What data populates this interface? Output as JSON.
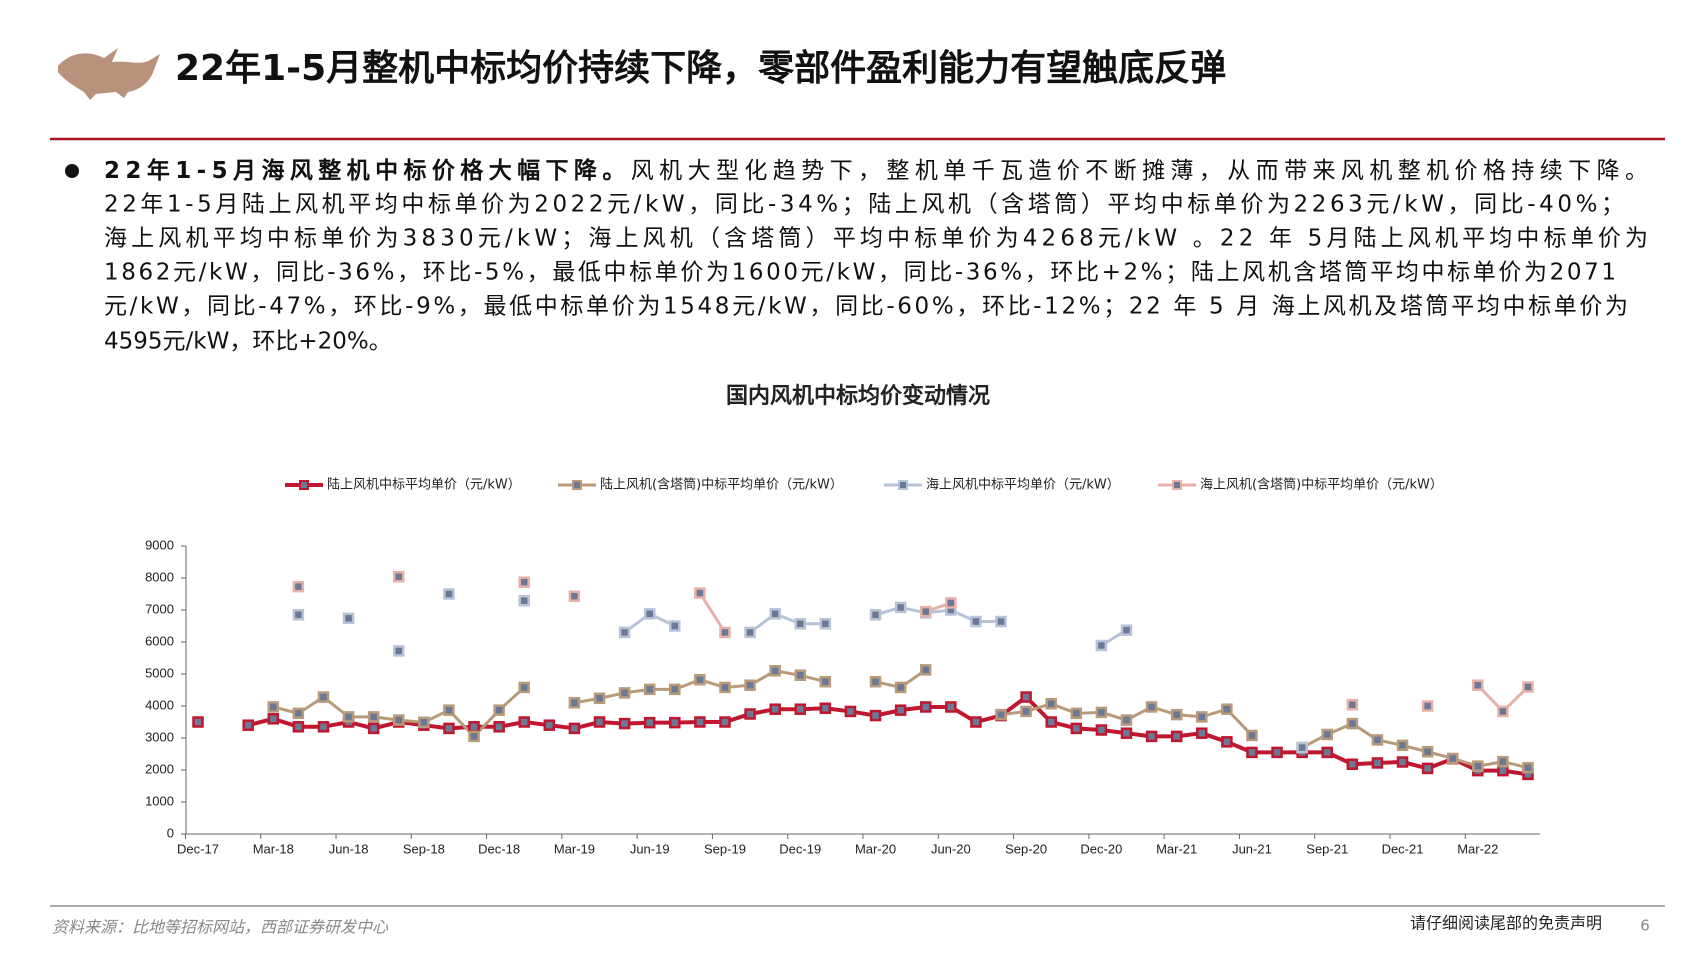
{
  "header": {
    "title": "22年1-5月整机中标均价持续下降，零部件盈利能力有望触底反弹"
  },
  "bullet": {
    "lead": "22年1-5月海风整机中标价格大幅下降。",
    "lines": [
      "风机大型化趋势下，整机单千瓦造价不断摊薄，从而带来风机整机价格持续下降。",
      "22年1-5月陆上风机平均中标单价为2022元/kW，同比-34%；陆上风机（含塔筒）平均中标单价为2263元/kW，同比-40%；",
      "海上风机平均中标单价为3830元/kW；海上风机（含塔筒）平均中标单价为4268元/kW 。22 年 5月陆上风机平均中标单价为",
      "1862元/kW，同比-36%，环比-5%，最低中标单价为1600元/kW，同比-36%，环比+2%；陆上风机含塔筒平均中标单价为2071",
      "元/kW，同比-47%，环比-9%，最低中标单价为1548元/kW，同比-60%，环比-12%；22 年 5 月 海上风机及塔筒平均中标单价为",
      "4595元/kW，环比+20%。"
    ]
  },
  "chart_data": {
    "type": "line",
    "title": "国内风机中标均价变动情况",
    "categories": [
      "Dec-17",
      null,
      null,
      "Mar-18",
      null,
      null,
      "Jun-18",
      null,
      null,
      "Sep-18",
      null,
      null,
      "Dec-18",
      null,
      null,
      "Mar-19",
      null,
      null,
      "Jun-19",
      null,
      null,
      "Sep-19",
      null,
      null,
      "Dec-19",
      null,
      null,
      "Mar-20",
      null,
      null,
      "Jun-20",
      null,
      null,
      "Sep-20",
      null,
      null,
      "Dec-20",
      null,
      null,
      "Mar-21",
      null,
      null,
      "Jun-21",
      null,
      null,
      "Sep-21",
      null,
      null,
      "Dec-21",
      null,
      null,
      "Mar-22",
      null,
      null
    ],
    "ylim": [
      0,
      9000
    ],
    "yticks": [
      0,
      1000,
      2000,
      3000,
      4000,
      5000,
      6000,
      7000,
      8000,
      9000
    ],
    "legend": "top",
    "series": [
      {
        "name": "陆上风机中标平均单价（元/kW）",
        "color": "#c0172f",
        "values": [
          3500,
          null,
          3400,
          3600,
          3350,
          3350,
          3500,
          3300,
          3500,
          3400,
          3300,
          3350,
          3350,
          3500,
          3400,
          3300,
          3500,
          3450,
          3480,
          3480,
          3500,
          3500,
          3750,
          3900,
          3900,
          3930,
          3830,
          3700,
          3870,
          3970,
          3970,
          3500,
          3700,
          4280,
          3500,
          3300,
          3250,
          3150,
          3050,
          3050,
          3150,
          2880,
          2550,
          2550,
          2550,
          2550,
          2180,
          2220,
          2250,
          2050,
          2350,
          1980,
          1980,
          1862
        ]
      },
      {
        "name": "陆上风机(含塔筒)中标平均单价（元/kW）",
        "color": "#b89a7a",
        "values": [
          null,
          null,
          null,
          3970,
          3770,
          4280,
          3660,
          3660,
          3560,
          3490,
          3870,
          3050,
          3870,
          4580,
          null,
          4100,
          4240,
          4410,
          4520,
          4520,
          4820,
          4580,
          4650,
          5100,
          4960,
          4760,
          null,
          4760,
          4580,
          5130,
          null,
          null,
          3730,
          3830,
          4070,
          3770,
          3800,
          3560,
          3970,
          3730,
          3660,
          3900,
          3080,
          null,
          2700,
          3110,
          3450,
          2940,
          2770,
          2570,
          2360,
          2120,
          2260,
          2071
        ]
      },
      {
        "name": "海上风机中标平均单价（元/kW）",
        "color": "#b7c3d6",
        "values": [
          null,
          null,
          null,
          null,
          6850,
          null,
          6740,
          null,
          5720,
          null,
          7500,
          null,
          null,
          7290,
          null,
          null,
          null,
          6300,
          6880,
          6500,
          null,
          null,
          6300,
          6880,
          6570,
          6570,
          null,
          6850,
          7080,
          6910,
          7000,
          6640,
          6640,
          null,
          null,
          null,
          5890,
          6370,
          null,
          null,
          null,
          null,
          null,
          null,
          2700,
          null,
          null,
          null,
          null,
          null,
          null,
          null,
          null,
          null
        ]
      },
      {
        "name": "海上风机(含塔筒)中标平均单价（元/kW）",
        "color": "#e8b0a8",
        "values": [
          null,
          null,
          null,
          null,
          7730,
          null,
          null,
          null,
          8040,
          null,
          null,
          null,
          null,
          7870,
          null,
          7430,
          null,
          null,
          null,
          null,
          7530,
          6300,
          null,
          null,
          null,
          null,
          null,
          null,
          null,
          6950,
          7220,
          null,
          null,
          null,
          null,
          null,
          null,
          null,
          null,
          null,
          null,
          null,
          null,
          null,
          null,
          null,
          4040,
          null,
          null,
          4000,
          null,
          4650,
          3830,
          4595
        ]
      }
    ]
  },
  "footer": {
    "source": "资料来源：比地等招标网站，西部证券研发中心",
    "disclaimer": "请仔细阅读尾部的免责声明",
    "page": "6"
  }
}
